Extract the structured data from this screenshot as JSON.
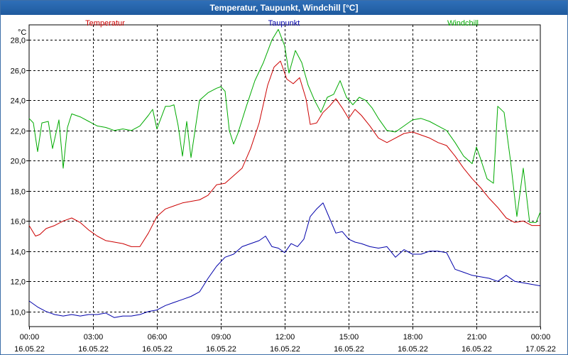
{
  "window": {
    "title": "Temperatur, Taupunkt, Windchill [°C]"
  },
  "colors": {
    "temperatur": "#cc0000",
    "taupunkt": "#0000aa",
    "windchill": "#00aa00",
    "grid": "#000000",
    "titlebar": "#2664ac"
  },
  "chart_data": {
    "type": "line",
    "title": "Temperatur, Taupunkt, Windchill [°C]",
    "ylabel": "°C",
    "xlabel": "",
    "ylim": [
      9,
      29
    ],
    "xlim": [
      0,
      24
    ],
    "grid": true,
    "legend_position": "top",
    "yticks": [
      10,
      12,
      14,
      16,
      18,
      20,
      22,
      24,
      26,
      28
    ],
    "ytick_labels": [
      "10,0",
      "12,0",
      "14,0",
      "16,0",
      "18,0",
      "20,0",
      "22,0",
      "24,0",
      "26,0",
      "28,0"
    ],
    "xticks": [
      0,
      3,
      6,
      9,
      12,
      15,
      18,
      21,
      24
    ],
    "xtick_labels": [
      [
        "00:00",
        "16.05.22"
      ],
      [
        "03:00",
        "16.05.22"
      ],
      [
        "06:00",
        "16.05.22"
      ],
      [
        "09:00",
        "16.05.22"
      ],
      [
        "12:00",
        "16.05.22"
      ],
      [
        "15:00",
        "16.05.22"
      ],
      [
        "18:00",
        "16.05.22"
      ],
      [
        "21:00",
        "16.05.22"
      ],
      [
        "00:00",
        "17.05.22"
      ]
    ],
    "series": [
      {
        "name": "Temperatur",
        "color": "#cc0000",
        "x": [
          0,
          0.3,
          0.5,
          0.8,
          1.2,
          1.6,
          2.0,
          2.4,
          2.8,
          3.2,
          3.6,
          4.0,
          4.4,
          4.8,
          5.2,
          5.6,
          6.0,
          6.4,
          6.8,
          7.2,
          7.6,
          8.0,
          8.4,
          8.8,
          9.2,
          9.6,
          10.0,
          10.4,
          10.8,
          11.2,
          11.5,
          11.8,
          12.1,
          12.4,
          12.7,
          13.0,
          13.2,
          13.5,
          13.8,
          14.1,
          14.4,
          14.7,
          15.0,
          15.3,
          15.6,
          16.0,
          16.4,
          16.8,
          17.2,
          17.6,
          18.0,
          18.4,
          18.8,
          19.2,
          19.6,
          20.0,
          20.4,
          20.8,
          21.2,
          21.6,
          22.0,
          22.4,
          22.8,
          23.2,
          23.6,
          24.0
        ],
        "y": [
          15.7,
          15.0,
          15.1,
          15.5,
          15.7,
          16.0,
          16.2,
          15.9,
          15.4,
          15.0,
          14.7,
          14.6,
          14.5,
          14.3,
          14.3,
          15.2,
          16.3,
          16.8,
          17.0,
          17.2,
          17.3,
          17.4,
          17.7,
          18.4,
          18.5,
          19.0,
          19.5,
          20.8,
          22.5,
          25.0,
          26.2,
          26.6,
          25.4,
          25.1,
          25.5,
          24.1,
          22.4,
          22.5,
          23.2,
          23.6,
          24.1,
          23.5,
          22.8,
          23.4,
          23.0,
          22.3,
          21.5,
          21.2,
          21.5,
          21.8,
          21.9,
          21.7,
          21.5,
          21.2,
          21.0,
          20.3,
          19.5,
          18.8,
          18.2,
          17.5,
          16.9,
          16.2,
          15.9,
          16.0,
          15.7,
          15.7
        ]
      },
      {
        "name": "Taupunkt",
        "color": "#0000aa",
        "x": [
          0,
          0.4,
          0.8,
          1.2,
          1.6,
          2.0,
          2.4,
          2.8,
          3.2,
          3.6,
          4.0,
          4.4,
          4.8,
          5.2,
          5.6,
          6.0,
          6.4,
          6.8,
          7.2,
          7.6,
          8.0,
          8.4,
          8.8,
          9.2,
          9.6,
          10.0,
          10.4,
          10.8,
          11.1,
          11.4,
          11.7,
          12.0,
          12.3,
          12.6,
          12.9,
          13.2,
          13.5,
          13.8,
          14.1,
          14.4,
          14.7,
          15.0,
          15.3,
          15.6,
          16.0,
          16.4,
          16.8,
          17.2,
          17.6,
          18.0,
          18.4,
          18.8,
          19.2,
          19.6,
          20.0,
          20.4,
          20.8,
          21.2,
          21.6,
          22.0,
          22.4,
          22.8,
          23.2,
          23.6,
          24.0
        ],
        "y": [
          10.7,
          10.3,
          10.0,
          9.8,
          9.7,
          9.8,
          9.7,
          9.8,
          9.8,
          9.9,
          9.6,
          9.7,
          9.7,
          9.8,
          10.0,
          10.1,
          10.4,
          10.6,
          10.8,
          11.0,
          11.3,
          12.2,
          13.0,
          13.6,
          13.8,
          14.3,
          14.5,
          14.7,
          15.0,
          14.3,
          14.2,
          13.9,
          14.5,
          14.3,
          14.8,
          16.3,
          16.8,
          17.2,
          16.2,
          15.2,
          15.3,
          14.8,
          14.6,
          14.5,
          14.3,
          14.2,
          14.3,
          13.6,
          14.1,
          13.8,
          13.8,
          14.0,
          14.0,
          13.9,
          12.8,
          12.6,
          12.4,
          12.3,
          12.2,
          12.0,
          12.4,
          12.0,
          11.9,
          11.8,
          11.7
        ]
      },
      {
        "name": "Windchill",
        "color": "#00aa00",
        "x": [
          0,
          0.2,
          0.4,
          0.6,
          0.9,
          1.1,
          1.4,
          1.6,
          1.8,
          2.0,
          2.4,
          2.8,
          3.2,
          3.6,
          4.0,
          4.4,
          4.8,
          5.2,
          5.6,
          5.8,
          6.0,
          6.4,
          6.6,
          6.8,
          7.0,
          7.2,
          7.4,
          7.6,
          8.0,
          8.4,
          8.8,
          9.0,
          9.2,
          9.4,
          9.6,
          9.8,
          10.2,
          10.6,
          11.0,
          11.4,
          11.7,
          12.0,
          12.2,
          12.5,
          12.8,
          13.1,
          13.4,
          13.7,
          14.0,
          14.3,
          14.6,
          14.9,
          15.2,
          15.5,
          15.8,
          16.1,
          16.4,
          16.8,
          17.2,
          17.6,
          18.0,
          18.4,
          18.8,
          19.2,
          19.6,
          20.0,
          20.4,
          20.8,
          21.0,
          21.2,
          21.5,
          21.8,
          22.0,
          22.3,
          22.6,
          22.9,
          23.2,
          23.5,
          23.8,
          24.0
        ],
        "y": [
          22.8,
          22.5,
          20.6,
          22.5,
          22.6,
          20.8,
          22.7,
          19.5,
          22.2,
          23.1,
          22.9,
          22.6,
          22.3,
          22.2,
          22.0,
          22.1,
          22.0,
          22.3,
          23.0,
          23.4,
          22.1,
          23.6,
          23.6,
          23.7,
          22.3,
          20.3,
          22.6,
          20.2,
          24.0,
          24.5,
          24.8,
          24.9,
          24.6,
          22.0,
          21.1,
          21.8,
          23.6,
          25.3,
          26.5,
          28.0,
          28.7,
          27.6,
          25.8,
          27.3,
          26.5,
          25.0,
          24.0,
          23.2,
          24.2,
          24.4,
          25.3,
          24.2,
          23.7,
          24.2,
          24.0,
          23.5,
          22.8,
          22.0,
          21.9,
          22.3,
          22.7,
          22.8,
          22.6,
          22.3,
          22.0,
          21.2,
          20.3,
          19.8,
          20.9,
          20.1,
          18.8,
          18.5,
          23.6,
          23.2,
          20.0,
          16.3,
          19.5,
          15.9,
          15.9,
          16.6
        ]
      }
    ]
  }
}
